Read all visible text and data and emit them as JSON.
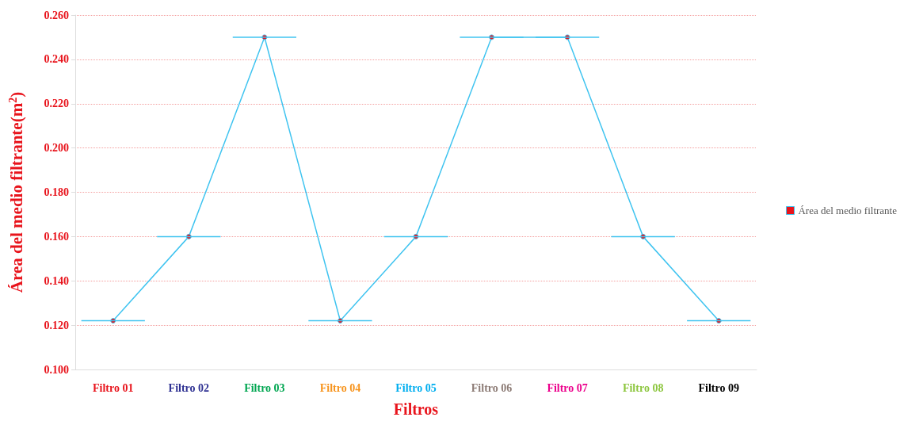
{
  "chart_data": {
    "type": "line",
    "xlabel": "Filtros",
    "ylabel": "Área del medio filtrante(m$^{2}$)",
    "categories": [
      "Filtro 01",
      "Filtro 02",
      "Filtro 03",
      "Filtro 04",
      "Filtro 05",
      "Filtro 06",
      "Filtro 07",
      "Filtro 08",
      "Filtro 09"
    ],
    "series": [
      {
        "name": "Área del medio filtrante",
        "color": "#40c4f0",
        "values": [
          0.122,
          0.16,
          0.25,
          0.122,
          0.16,
          0.25,
          0.25,
          0.16,
          0.122
        ]
      }
    ],
    "ylim": [
      0.1,
      0.26
    ],
    "yticks": [
      {
        "value": 0.1,
        "label": "0.100"
      },
      {
        "value": 0.12,
        "label": "0.120"
      },
      {
        "value": 0.14,
        "label": "0.140"
      },
      {
        "value": 0.16,
        "label": "0.160"
      },
      {
        "value": 0.18,
        "label": "0.180"
      },
      {
        "value": 0.2,
        "label": "0.200"
      },
      {
        "value": 0.22,
        "label": "0.220"
      },
      {
        "value": 0.24,
        "label": "0.240"
      },
      {
        "value": 0.26,
        "label": "0.260"
      }
    ],
    "grid": "y",
    "legend": "right",
    "marker": "circle",
    "line_style": "solid"
  }
}
